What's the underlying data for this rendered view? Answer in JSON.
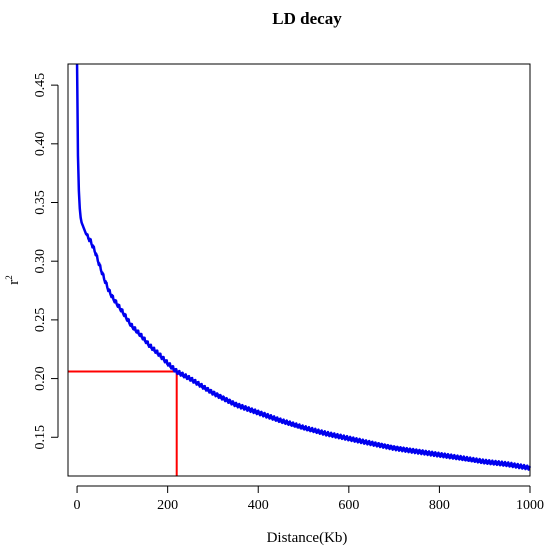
{
  "chart_data": {
    "type": "line",
    "title": "LD decay",
    "xlabel": "Distance(Kb)",
    "ylabel": "r",
    "ylabel_superscript": "2",
    "xlim": [
      -20,
      1000
    ],
    "ylim": [
      0.117,
      0.468
    ],
    "x_ticks": [
      0,
      200,
      400,
      600,
      800,
      1000
    ],
    "x_tick_labels": [
      "0",
      "200",
      "400",
      "600",
      "800",
      "1000"
    ],
    "y_ticks": [
      0.15,
      0.2,
      0.25,
      0.3,
      0.35,
      0.4,
      0.45
    ],
    "y_tick_labels": [
      "0.15",
      "0.20",
      "0.25",
      "0.30",
      "0.35",
      "0.40",
      "0.45"
    ],
    "grid": false,
    "series": [
      {
        "color": "#0000ee",
        "x": [
          0,
          1,
          2,
          4,
          6,
          8,
          10,
          15,
          20,
          30,
          40,
          50,
          60,
          70,
          80,
          100,
          120,
          140,
          160,
          180,
          200,
          220,
          250,
          300,
          350,
          400,
          450,
          500,
          550,
          600,
          650,
          700,
          750,
          800,
          850,
          900,
          950,
          1000
        ],
        "y": [
          0.468,
          0.43,
          0.39,
          0.36,
          0.345,
          0.337,
          0.333,
          0.328,
          0.323,
          0.317,
          0.308,
          0.296,
          0.285,
          0.275,
          0.268,
          0.257,
          0.245,
          0.237,
          0.228,
          0.221,
          0.213,
          0.206,
          0.2,
          0.188,
          0.178,
          0.171,
          0.164,
          0.158,
          0.153,
          0.149,
          0.145,
          0.141,
          0.138,
          0.135,
          0.132,
          0.129,
          0.127,
          0.124
        ]
      }
    ],
    "threshold": {
      "color": "#ff0000",
      "x": 220,
      "y": 0.206
    }
  }
}
